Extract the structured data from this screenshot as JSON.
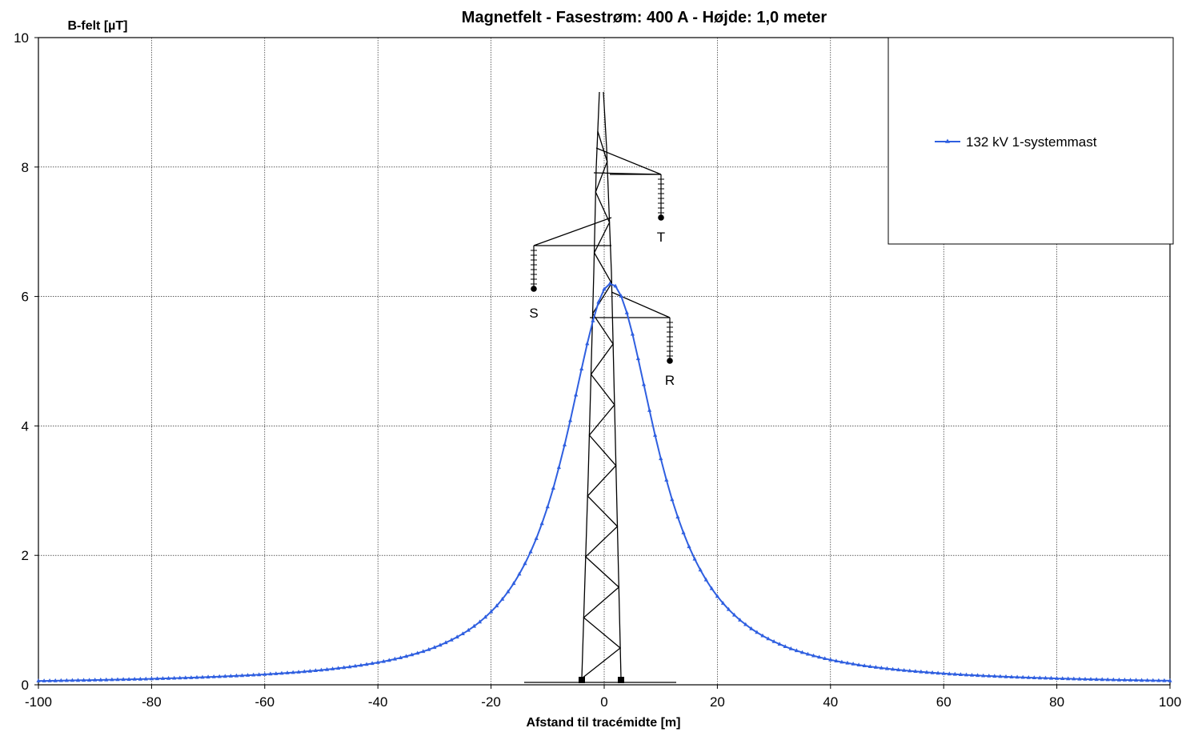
{
  "chart_data": {
    "type": "line",
    "title": "Magnetfelt  -  Fasestrøm: 400 A  -  Højde: 1,0 meter",
    "xlabel": "Afstand til tracémidte [m]",
    "ylabel": "B-felt [µT]",
    "xlim": [
      -100,
      100
    ],
    "ylim": [
      0,
      10
    ],
    "xticks": [
      -100,
      -80,
      -60,
      -40,
      -20,
      0,
      20,
      40,
      60,
      80,
      100
    ],
    "yticks": [
      0,
      2,
      4,
      6,
      8,
      10
    ],
    "grid": true,
    "legend_position": "top-right",
    "series": [
      {
        "name": "132 kV 1-systemmast",
        "color": "#2f5fe0",
        "marker": "triangle",
        "model": {
          "note": "curve shape, in data units",
          "amplitude": 5.82,
          "center": 1.2,
          "a": 9.5,
          "b": 2.4,
          "tail_scale": 620,
          "tail_power": 2
        }
      }
    ],
    "annotations": {
      "phase_labels": [
        "T",
        "S",
        "R"
      ],
      "tower_icon": "transmission-tower-icon"
    }
  }
}
